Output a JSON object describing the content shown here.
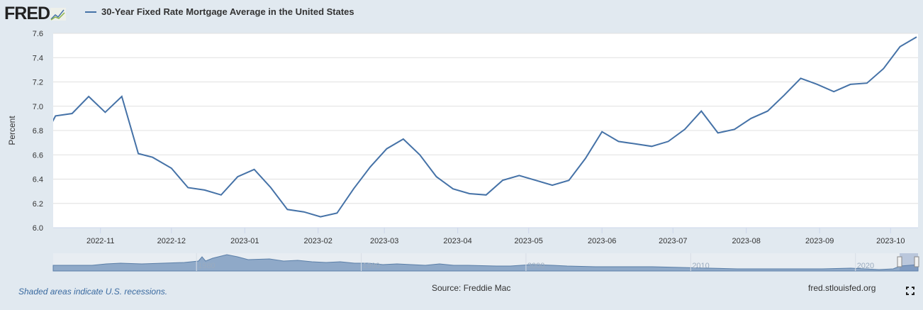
{
  "header": {
    "logo": "FRED",
    "series_title": "30-Year Fixed Rate Mortgage Average in the United States"
  },
  "footer": {
    "note": "Shaded areas indicate U.S. recessions.",
    "source": "Source: Freddie Mac",
    "site": "fred.stlouisfed.org"
  },
  "colors": {
    "line": "#4572a7",
    "background": "#e1e9f0",
    "plot": "#ffffff",
    "navigator": "#8fa9c8"
  },
  "chart_data": {
    "type": "line",
    "title": "30-Year Fixed Rate Mortgage Average in the United States",
    "ylabel": "Percent",
    "ylim": [
      6.0,
      7.6
    ],
    "yticks": [
      "6.0",
      "6.2",
      "6.4",
      "6.6",
      "6.8",
      "7.0",
      "7.2",
      "7.4",
      "7.6"
    ],
    "xlim": [
      "2022-10-12",
      "2023-10-12"
    ],
    "xticks": [
      "2022-11",
      "2022-12",
      "2023-01",
      "2023-02",
      "2023-03",
      "2023-04",
      "2023-05",
      "2023-06",
      "2023-07",
      "2023-08",
      "2023-09",
      "2023-10"
    ],
    "grid": true,
    "series": [
      {
        "name": "30-Year Fixed Rate Mortgage Average in the United States",
        "x": [
          "2022-10-06",
          "2022-10-13",
          "2022-10-20",
          "2022-10-27",
          "2022-11-03",
          "2022-11-10",
          "2022-11-17",
          "2022-11-23",
          "2022-12-01",
          "2022-12-08",
          "2022-12-15",
          "2022-12-22",
          "2022-12-29",
          "2023-01-05",
          "2023-01-12",
          "2023-01-19",
          "2023-01-26",
          "2023-02-02",
          "2023-02-09",
          "2023-02-16",
          "2023-02-23",
          "2023-03-02",
          "2023-03-09",
          "2023-03-16",
          "2023-03-23",
          "2023-03-30",
          "2023-04-06",
          "2023-04-13",
          "2023-04-20",
          "2023-04-27",
          "2023-05-04",
          "2023-05-11",
          "2023-05-18",
          "2023-05-25",
          "2023-06-01",
          "2023-06-08",
          "2023-06-15",
          "2023-06-22",
          "2023-06-29",
          "2023-07-06",
          "2023-07-13",
          "2023-07-20",
          "2023-07-27",
          "2023-08-03",
          "2023-08-10",
          "2023-08-17",
          "2023-08-24",
          "2023-08-31",
          "2023-09-07",
          "2023-09-14",
          "2023-09-21",
          "2023-09-28",
          "2023-10-05",
          "2023-10-12"
        ],
        "values": [
          6.66,
          6.92,
          6.94,
          7.08,
          6.95,
          7.08,
          6.61,
          6.58,
          6.49,
          6.33,
          6.31,
          6.27,
          6.42,
          6.48,
          6.33,
          6.15,
          6.13,
          6.09,
          6.12,
          6.32,
          6.5,
          6.65,
          6.73,
          6.6,
          6.42,
          6.32,
          6.28,
          6.27,
          6.39,
          6.43,
          6.39,
          6.35,
          6.39,
          6.57,
          6.79,
          6.71,
          6.69,
          6.67,
          6.71,
          6.81,
          6.96,
          6.78,
          6.81,
          6.9,
          6.96,
          7.09,
          7.23,
          7.18,
          7.12,
          7.18,
          7.19,
          7.31,
          7.49,
          7.57
        ]
      }
    ],
    "navigator": {
      "ticks": [
        "1980",
        "1990",
        "2000",
        "2010",
        "2020"
      ]
    }
  }
}
